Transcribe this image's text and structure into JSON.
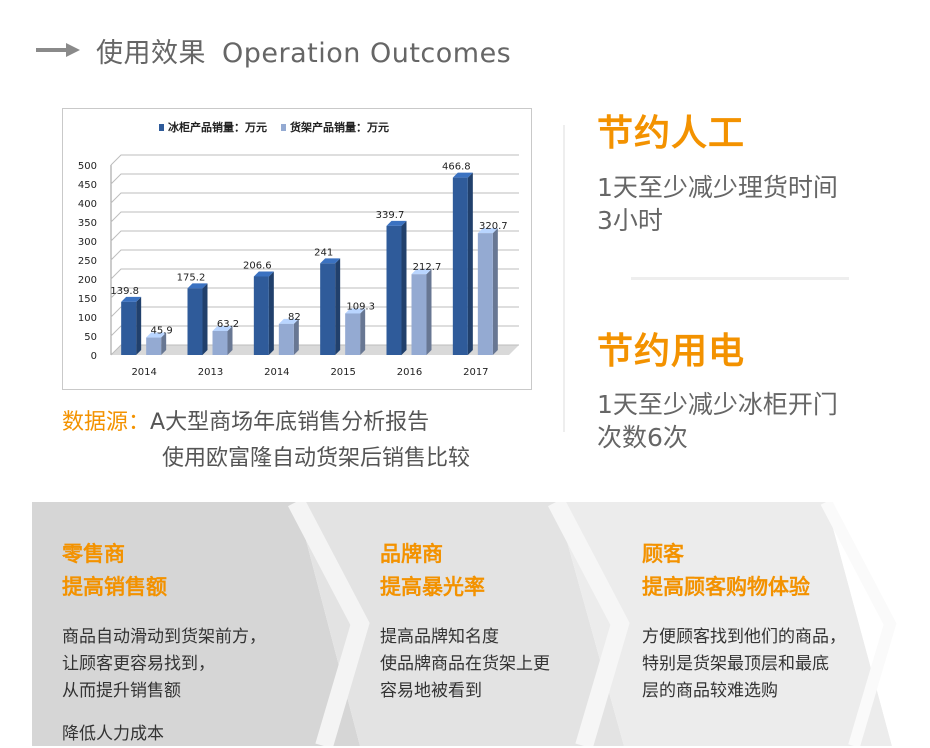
{
  "header": {
    "title_cn": "使用效果",
    "title_en": "Operation Outcomes"
  },
  "colors": {
    "accent": "#f39200",
    "series1": "#2f5b9a",
    "series2": "#94aad2",
    "band_light": "#d9d9d9",
    "band_lighter": "#e8e8e8"
  },
  "chart_data": {
    "type": "bar",
    "categories": [
      "2014",
      "2013",
      "2014",
      "2015",
      "2016",
      "2017"
    ],
    "series": [
      {
        "name": "冰柜产品销量：万元",
        "values": [
          139.8,
          175.2,
          206.6,
          241,
          339.7,
          466.8
        ],
        "color": "#2f5b9a"
      },
      {
        "name": "货架产品销量：万元",
        "values": [
          45.9,
          63.2,
          82,
          109.3,
          212.7,
          320.7
        ],
        "color": "#94aad2"
      }
    ],
    "data_labels": [
      [
        "139.8",
        "175.2",
        "206.6",
        "241",
        "339.7",
        "466.8"
      ],
      [
        "45.9",
        "63.2",
        "82",
        "109.3",
        "212.7",
        "320.7"
      ]
    ],
    "y_ticks": [
      "0",
      "50",
      "100",
      "150",
      "200",
      "250",
      "300",
      "350",
      "400",
      "450",
      "500"
    ],
    "ylim": [
      0,
      500
    ],
    "title": "",
    "xlabel": "",
    "ylabel": "",
    "legend_position": "top",
    "grid": true,
    "style": "3d-clustered-column"
  },
  "source": {
    "label": "数据源：",
    "line1": "A大型商场年底销售分析报告",
    "line2": "使用欧富隆自动货架后销售比较"
  },
  "savings": [
    {
      "title": "节约人工",
      "desc1": "1天至少减少理货时间",
      "desc2": "3小时"
    },
    {
      "title": "节约用电",
      "desc1": "1天至少减少冰柜开门",
      "desc2": "次数6次"
    }
  ],
  "columns": [
    {
      "title1": "零售商",
      "title2": "提高销售额",
      "lines": [
        "商品自动滑动到货架前方，",
        "让顾客更容易找到，",
        "从而提升销售额",
        "降低人力成本"
      ]
    },
    {
      "title1": "品牌商",
      "title2": "提高暴光率",
      "lines": [
        "提高品牌知名度",
        "使品牌商品在货架上更",
        "容易地被看到"
      ]
    },
    {
      "title1": "顾客",
      "title2": "提高顾客购物体验",
      "lines": [
        "方便顾客找到他们的商品，",
        "特别是货架最顶层和最底",
        "层的商品较难选购"
      ]
    }
  ]
}
